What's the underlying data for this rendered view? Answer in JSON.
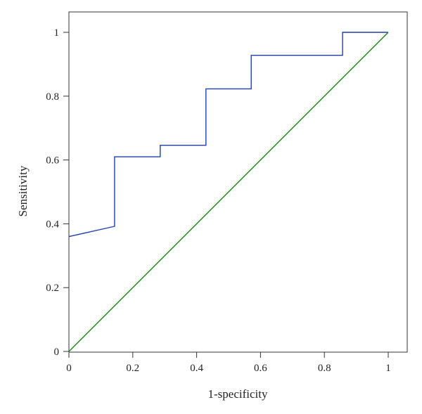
{
  "chart_data": {
    "type": "line",
    "title": "",
    "xlabel": "1-specificity",
    "ylabel": "Sensitivity",
    "xlim": [
      0,
      1
    ],
    "ylim": [
      0,
      1
    ],
    "x_ticks": [
      "0",
      "0.2",
      "0.4",
      "0.6",
      "0.8",
      "1"
    ],
    "y_ticks": [
      "0",
      "0.2",
      "0.4",
      "0.6",
      "0.8",
      "1"
    ],
    "grid": false,
    "legend": "none",
    "series": [
      {
        "color": "#1f3fae",
        "points": [
          [
            0,
            0.36
          ],
          [
            0.143,
            0.392
          ],
          [
            0.143,
            0.61
          ],
          [
            0.286,
            0.61
          ],
          [
            0.286,
            0.646
          ],
          [
            0.429,
            0.646
          ],
          [
            0.429,
            0.823
          ],
          [
            0.571,
            0.823
          ],
          [
            0.571,
            0.928
          ],
          [
            0.857,
            0.928
          ],
          [
            0.857,
            1.0
          ],
          [
            1.0,
            1.0
          ]
        ]
      },
      {
        "color": "#1a8a1a",
        "points": [
          [
            0,
            0
          ],
          [
            1,
            1
          ]
        ]
      }
    ]
  }
}
